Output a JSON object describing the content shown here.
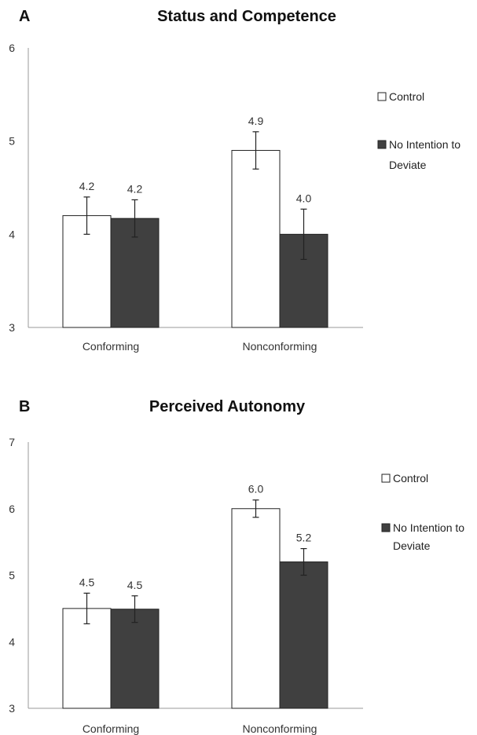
{
  "colors": {
    "control": "#ffffff",
    "no_intention": "#404040",
    "bar_stroke": "#222222"
  },
  "chart_data": [
    {
      "panel": "A",
      "type": "bar",
      "title": "Status and Competence",
      "xlabel": "",
      "ylabel": "",
      "categories": [
        "Conforming",
        "Nonconforming"
      ],
      "ylim": [
        3,
        6
      ],
      "yticks": [
        3,
        4,
        5,
        6
      ],
      "grid": false,
      "legend_position": "right",
      "series": [
        {
          "name": "Control",
          "values": [
            4.2,
            4.9
          ],
          "labels": [
            "4.2",
            "4.9"
          ],
          "errors": [
            0.2,
            0.2
          ]
        },
        {
          "name": "No Intention to Deviate",
          "values": [
            4.17,
            4.0
          ],
          "labels": [
            "4.2",
            "4.0"
          ],
          "errors": [
            0.2,
            0.27
          ]
        }
      ]
    },
    {
      "panel": "B",
      "type": "bar",
      "title": "Perceived Autonomy",
      "xlabel": "",
      "ylabel": "",
      "categories": [
        "Conforming",
        "Nonconforming"
      ],
      "ylim": [
        3,
        7
      ],
      "yticks": [
        3,
        4,
        5,
        6,
        7
      ],
      "grid": false,
      "legend_position": "right",
      "series": [
        {
          "name": "Control",
          "values": [
            4.5,
            6.0
          ],
          "labels": [
            "4.5",
            "6.0"
          ],
          "errors": [
            0.23,
            0.13
          ]
        },
        {
          "name": "No Intention to Deviate",
          "values": [
            4.49,
            5.2
          ],
          "labels": [
            "4.5",
            "5.2"
          ],
          "errors": [
            0.2,
            0.2
          ]
        }
      ]
    }
  ]
}
